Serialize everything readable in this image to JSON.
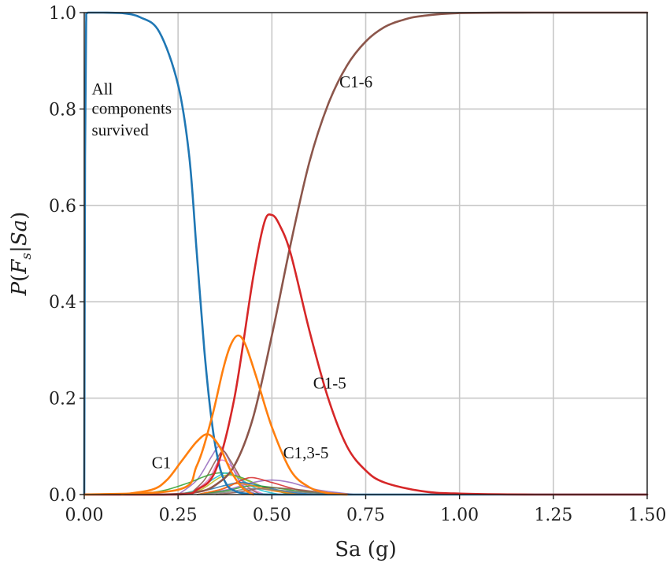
{
  "chart_data": {
    "type": "line",
    "title": "",
    "xlabel": "Sa (g)",
    "ylabel": "P(F_s|Sa)",
    "ylabel_parts": {
      "p": "P",
      "f": "F",
      "sub": "s",
      "bar": "|",
      "sa": "Sa"
    },
    "xlim": [
      0,
      1.5
    ],
    "ylim": [
      0,
      1.0
    ],
    "xticks": [
      0.0,
      0.25,
      0.5,
      0.75,
      1.0,
      1.25,
      1.5
    ],
    "xtick_labels": [
      "0.00",
      "0.25",
      "0.50",
      "0.75",
      "1.00",
      "1.25",
      "1.50"
    ],
    "yticks": [
      0.0,
      0.2,
      0.4,
      0.6,
      0.8,
      1.0
    ],
    "ytick_labels": [
      "0.0",
      "0.2",
      "0.4",
      "0.6",
      "0.8",
      "1.0"
    ],
    "grid": true,
    "annotations": [
      {
        "text": "All",
        "x": 0.02,
        "y": 0.83
      },
      {
        "text": "components",
        "x": 0.02,
        "y": 0.79
      },
      {
        "text": "survived",
        "x": 0.02,
        "y": 0.745
      },
      {
        "text": "C1-6",
        "x": 0.68,
        "y": 0.845
      },
      {
        "text": "C1-5",
        "x": 0.61,
        "y": 0.22
      },
      {
        "text": "C1",
        "x": 0.18,
        "y": 0.055
      },
      {
        "text": "C1,3-5",
        "x": 0.53,
        "y": 0.075
      }
    ],
    "series": [
      {
        "label": "All components survived",
        "color": "#1f77b4",
        "x": [
          0.0,
          0.002,
          0.005,
          0.01,
          0.05,
          0.1,
          0.15,
          0.2,
          0.25,
          0.28,
          0.3,
          0.32,
          0.34,
          0.36,
          0.38,
          0.4,
          0.42,
          0.45,
          0.5,
          0.6,
          0.8,
          1.0,
          1.5
        ],
        "y": [
          0.0,
          0.7,
          0.98,
          1.0,
          1.0,
          0.999,
          0.99,
          0.96,
          0.85,
          0.7,
          0.5,
          0.3,
          0.15,
          0.06,
          0.02,
          0.008,
          0.003,
          0.001,
          0.0,
          0.0,
          0.0,
          0.0,
          0.0
        ]
      },
      {
        "label": "C1-6",
        "color": "#8c564b",
        "x": [
          0.0,
          0.2,
          0.3,
          0.35,
          0.4,
          0.45,
          0.5,
          0.55,
          0.6,
          0.65,
          0.7,
          0.75,
          0.8,
          0.85,
          0.9,
          1.0,
          1.2,
          1.5
        ],
        "y": [
          0.0,
          0.0,
          0.005,
          0.02,
          0.06,
          0.16,
          0.33,
          0.52,
          0.69,
          0.81,
          0.89,
          0.94,
          0.97,
          0.985,
          0.993,
          0.999,
          1.0,
          1.0
        ]
      },
      {
        "label": "C1-5",
        "color": "#d62728",
        "x": [
          0.0,
          0.25,
          0.3,
          0.35,
          0.4,
          0.45,
          0.48,
          0.5,
          0.52,
          0.55,
          0.6,
          0.65,
          0.7,
          0.75,
          0.8,
          0.9,
          1.0,
          1.2,
          1.5
        ],
        "y": [
          0.0,
          0.0,
          0.01,
          0.05,
          0.2,
          0.45,
          0.565,
          0.58,
          0.56,
          0.5,
          0.34,
          0.2,
          0.1,
          0.05,
          0.025,
          0.007,
          0.002,
          0.0,
          0.0
        ]
      },
      {
        "label": "C1,3-5",
        "color": "#ff7f0e",
        "x": [
          0.0,
          0.25,
          0.3,
          0.34,
          0.37,
          0.39,
          0.41,
          0.43,
          0.46,
          0.5,
          0.55,
          0.6,
          0.65,
          0.7
        ],
        "y": [
          0.0,
          0.01,
          0.06,
          0.16,
          0.26,
          0.31,
          0.33,
          0.31,
          0.24,
          0.14,
          0.05,
          0.015,
          0.003,
          0.0
        ]
      },
      {
        "label": "C1",
        "color": "#ff7f0e",
        "x": [
          0.1,
          0.18,
          0.22,
          0.26,
          0.3,
          0.33,
          0.36,
          0.39,
          0.42,
          0.45
        ],
        "y": [
          0.0,
          0.01,
          0.03,
          0.07,
          0.11,
          0.125,
          0.1,
          0.05,
          0.015,
          0.0
        ]
      }
    ],
    "minor_series": [
      {
        "color": "#9467bd",
        "x": [
          0.25,
          0.3,
          0.34,
          0.36,
          0.38,
          0.42,
          0.46
        ],
        "y": [
          0.0,
          0.03,
          0.08,
          0.1,
          0.08,
          0.02,
          0.0
        ]
      },
      {
        "color": "#8c564b",
        "x": [
          0.28,
          0.32,
          0.35,
          0.37,
          0.39,
          0.43,
          0.47
        ],
        "y": [
          0.0,
          0.03,
          0.07,
          0.09,
          0.07,
          0.02,
          0.0
        ]
      },
      {
        "color": "#e377c2",
        "x": [
          0.28,
          0.33,
          0.36,
          0.39,
          0.43,
          0.48
        ],
        "y": [
          0.0,
          0.03,
          0.07,
          0.06,
          0.02,
          0.0
        ]
      },
      {
        "color": "#2ca02c",
        "x": [
          0.15,
          0.22,
          0.28,
          0.33,
          0.37,
          0.42,
          0.48,
          0.55
        ],
        "y": [
          0.0,
          0.01,
          0.025,
          0.04,
          0.045,
          0.035,
          0.015,
          0.0
        ]
      },
      {
        "color": "#17becf",
        "x": [
          0.25,
          0.3,
          0.35,
          0.38,
          0.41,
          0.46,
          0.52
        ],
        "y": [
          0.0,
          0.01,
          0.035,
          0.045,
          0.035,
          0.012,
          0.0
        ]
      },
      {
        "color": "#bcbd22",
        "x": [
          0.25,
          0.31,
          0.36,
          0.39,
          0.43,
          0.5,
          0.58
        ],
        "y": [
          0.0,
          0.01,
          0.035,
          0.04,
          0.03,
          0.01,
          0.0
        ]
      },
      {
        "color": "#9467bd",
        "x": [
          0.3,
          0.38,
          0.45,
          0.5,
          0.55,
          0.62,
          0.72
        ],
        "y": [
          0.0,
          0.01,
          0.025,
          0.03,
          0.025,
          0.01,
          0.0
        ]
      },
      {
        "color": "#1f77b4",
        "x": [
          0.25,
          0.32,
          0.38,
          0.42,
          0.47,
          0.54,
          0.62
        ],
        "y": [
          0.0,
          0.008,
          0.02,
          0.025,
          0.018,
          0.006,
          0.0
        ]
      },
      {
        "color": "#d62728",
        "x": [
          0.3,
          0.37,
          0.42,
          0.45,
          0.5,
          0.58,
          0.66
        ],
        "y": [
          0.0,
          0.012,
          0.03,
          0.035,
          0.025,
          0.008,
          0.0
        ]
      },
      {
        "color": "#2ca02c",
        "x": [
          0.3,
          0.38,
          0.44,
          0.5,
          0.58,
          0.68
        ],
        "y": [
          0.0,
          0.008,
          0.018,
          0.015,
          0.006,
          0.0
        ]
      },
      {
        "color": "#8c564b",
        "x": [
          0.35,
          0.42,
          0.48,
          0.55,
          0.63,
          0.72
        ],
        "y": [
          0.0,
          0.006,
          0.014,
          0.012,
          0.005,
          0.0
        ]
      },
      {
        "color": "#ff7f0e",
        "x": [
          0.3,
          0.36,
          0.4,
          0.44,
          0.5,
          0.58
        ],
        "y": [
          0.0,
          0.01,
          0.022,
          0.02,
          0.008,
          0.0
        ]
      },
      {
        "color": "#7f7f7f",
        "x": [
          0.3,
          0.38,
          0.44,
          0.5,
          0.6,
          0.7
        ],
        "y": [
          0.0,
          0.005,
          0.012,
          0.01,
          0.004,
          0.0
        ]
      }
    ]
  }
}
